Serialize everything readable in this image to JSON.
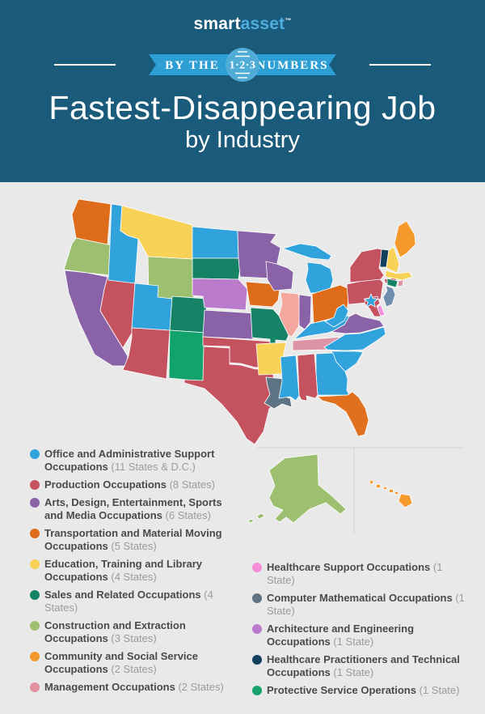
{
  "header": {
    "background": "#1A5A7A",
    "logo": {
      "part1": "smart",
      "part2": "asset",
      "tm": "™"
    },
    "ribbon": {
      "left_text": "BY THE",
      "badge_text": "1·2·3",
      "right_text": "NUMBERS",
      "ribbon_color": "#2E9FD4",
      "badge_color": "#4FADD8"
    },
    "title_line1": "Fastest-Disappearing Job",
    "title_line2": "by Industry"
  },
  "legend": {
    "left": [
      {
        "label": "Office and Administrative Support Occupations",
        "count": "(11 States & D.C.)",
        "color": "#30A2DC"
      },
      {
        "label": "Production Occupations",
        "count": "(8 States)",
        "color": "#C5525F"
      },
      {
        "label": "Arts, Design, Entertainment, Sports and Media Occupations",
        "count": "(6 States)",
        "color": "#8962A8"
      },
      {
        "label": "Transportation and Material Moving Occupations",
        "count": "(5 States)",
        "color": "#DE6C1A"
      },
      {
        "label": "Education, Training and Library Occupations",
        "count": "(4 States)",
        "color": "#F8D157"
      },
      {
        "label": "Sales and Related Occupations",
        "count": "(4 States)",
        "color": "#168367"
      },
      {
        "label": "Construction and Extraction Occupations",
        "count": "(3 States)",
        "color": "#9CC06F"
      },
      {
        "label": "Community and Social Service Occupations",
        "count": "(2 States)",
        "color": "#F49A2D"
      },
      {
        "label": "Management Occupations",
        "count": "(2 States)",
        "color": "#E0909F"
      }
    ],
    "right": [
      {
        "label": "Healthcare Support Occupations",
        "count": "(1 State)",
        "color": "#F28FD8"
      },
      {
        "label": "Computer Mathematical Occupations",
        "count": "(1 State)",
        "color": "#5E7384"
      },
      {
        "label": "Architecture and Engineering Occupations",
        "count": "(1 State)",
        "color": "#BA7BCC"
      },
      {
        "label": "Healthcare Practitioners and Technical Occupations",
        "count": "(1 State)",
        "color": "#133F5E"
      },
      {
        "label": "Protective Service Operations",
        "count": "(1 State)",
        "color": "#16A46C"
      }
    ]
  },
  "map": {
    "background": "#E9E9E9",
    "border_color": "#FFFFFF",
    "inset_line_color": "#D2D2D2",
    "dc_star_color": "#30A2DC",
    "state_colors": {
      "WA": "#DE6C1A",
      "OR": "#9CC06F",
      "CA": "#8962A8",
      "NV": "#C5525F",
      "ID": "#30A2DC",
      "MT": "#F8D157",
      "WY": "#9CC06F",
      "UT": "#30A2DC",
      "AZ": "#C5525F",
      "CO": "#168367",
      "NM": "#12A36C",
      "ND": "#30A2DC",
      "SD": "#168367",
      "NE": "#BA7BCC",
      "KS": "#8962A8",
      "OK": "#C5525F",
      "TX": "#C5525F",
      "MN": "#8962A8",
      "WI": "#8962A8",
      "IA": "#DE6C1A",
      "MO": "#168367",
      "AR": "#F8D157",
      "LA": "#5E7384",
      "IL": "#F4A79C",
      "MI": "#30A2DC",
      "IN": "#8962A8",
      "OH": "#DE6C1A",
      "KY": "#30A2DC",
      "TN": "#DD93A6",
      "MS": "#30A2DC",
      "AL": "#C5525F",
      "GA": "#30A2DC",
      "FL": "#E0701E",
      "SC": "#30A2DC",
      "NC": "#30A2DC",
      "VA": "#8962A8",
      "WV": "#30A2DC",
      "PA": "#C5525F",
      "NY": "#C5525F",
      "VT": "#133F5E",
      "NH": "#F8D157",
      "ME": "#F49A2D",
      "MA": "#F8D157",
      "CT": "#168367",
      "RI": "#DD93A6",
      "NJ": "#6E8CAE",
      "DE": "#F28FD8",
      "MD": "#C5525F",
      "AK": "#9CC06F",
      "HI": "#F49A2D"
    }
  },
  "chart_data": {
    "type": "choropleth",
    "title": "Fastest-Disappearing Job by Industry",
    "region": "United States (50 states + D.C., with Alaska and Hawaii insets)",
    "legend_position": "bottom",
    "categories": [
      {
        "label": "Office and Administrative Support Occupations",
        "count_label": "(11 States & D.C.)",
        "value": 11,
        "color": "#30A2DC"
      },
      {
        "label": "Production Occupations",
        "count_label": "(8 States)",
        "value": 8,
        "color": "#C5525F"
      },
      {
        "label": "Arts, Design, Entertainment, Sports and Media Occupations",
        "count_label": "(6 States)",
        "value": 6,
        "color": "#8962A8"
      },
      {
        "label": "Transportation and Material Moving Occupations",
        "count_label": "(5 States)",
        "value": 5,
        "color": "#DE6C1A"
      },
      {
        "label": "Education, Training and Library Occupations",
        "count_label": "(4 States)",
        "value": 4,
        "color": "#F8D157"
      },
      {
        "label": "Sales and Related Occupations",
        "count_label": "(4 States)",
        "value": 4,
        "color": "#168367"
      },
      {
        "label": "Construction and Extraction Occupations",
        "count_label": "(3 States)",
        "value": 3,
        "color": "#9CC06F"
      },
      {
        "label": "Community and Social Service Occupations",
        "count_label": "(2 States)",
        "value": 2,
        "color": "#F49A2D"
      },
      {
        "label": "Management Occupations",
        "count_label": "(2 States)",
        "value": 2,
        "color": "#E0909F"
      },
      {
        "label": "Healthcare Support Occupations",
        "count_label": "(1 State)",
        "value": 1,
        "color": "#F28FD8"
      },
      {
        "label": "Computer Mathematical Occupations",
        "count_label": "(1 State)",
        "value": 1,
        "color": "#5E7384"
      },
      {
        "label": "Architecture and Engineering Occupations",
        "count_label": "(1 State)",
        "value": 1,
        "color": "#BA7BCC"
      },
      {
        "label": "Healthcare Practitioners and Technical Occupations",
        "count_label": "(1 State)",
        "value": 1,
        "color": "#133F5E"
      },
      {
        "label": "Protective Service Operations",
        "count_label": "(1 State)",
        "value": 1,
        "color": "#16A46C"
      }
    ]
  }
}
